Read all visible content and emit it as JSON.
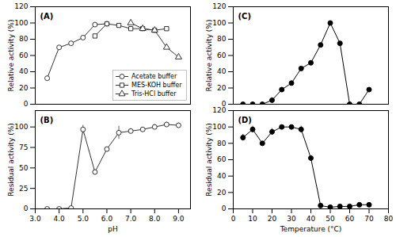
{
  "chart_data": [
    {
      "type": "line",
      "annotation": "(A)",
      "ylabel": "Relative activity (%)",
      "xlim": [
        3,
        9.5
      ],
      "ylim": [
        0,
        120
      ],
      "yticks": [
        0,
        20,
        40,
        60,
        80,
        100,
        120
      ],
      "tick_labels": "y",
      "legend": "lower right",
      "series": [
        {
          "name": "Acetate buffer",
          "color": "#333333",
          "marker": "open_circle",
          "x": [
            3.5,
            4.0,
            4.5,
            5.0,
            5.5,
            6.0
          ],
          "values": [
            32,
            70,
            75,
            82,
            98,
            99
          ]
        },
        {
          "name": "MES-KOH buffer",
          "color": "#333333",
          "marker": "open_square",
          "x": [
            5.5,
            6.0,
            6.5,
            7.0,
            7.5,
            8.0,
            8.5
          ],
          "values": [
            84,
            99,
            97,
            93,
            93,
            91,
            93
          ]
        },
        {
          "name": "Tris-HCl buffer",
          "color": "#333333",
          "marker": "open_triangle",
          "x": [
            7.0,
            7.5,
            8.0,
            8.5,
            9.0
          ],
          "values": [
            100,
            93,
            91,
            70,
            58
          ]
        }
      ]
    },
    {
      "type": "line",
      "annotation": "(C)",
      "ylabel": "Relative activity (%)",
      "xlim": [
        0,
        80
      ],
      "ylim": [
        0,
        120
      ],
      "yticks": [
        0,
        20,
        40,
        60,
        80,
        100,
        120
      ],
      "tick_labels": "y",
      "color": "#000000",
      "marker": "circle",
      "x": [
        5,
        10,
        15,
        20,
        25,
        30,
        35,
        40,
        45,
        50,
        55,
        60,
        65,
        70
      ],
      "values": [
        0,
        0,
        0,
        5,
        18,
        26,
        44,
        51,
        73,
        100,
        75,
        0,
        0,
        18
      ]
    },
    {
      "type": "line",
      "annotation": "(B)",
      "xlabel": "pH",
      "ylabel": "Residual activity (%)",
      "xlim": [
        3,
        9.5
      ],
      "xticks": [
        3,
        4,
        5,
        6,
        7,
        8,
        9
      ],
      "ylim": [
        0,
        120
      ],
      "yticks": [
        0,
        25,
        50,
        75,
        100
      ],
      "color": "#333333",
      "marker": "open_circle",
      "x": [
        3.5,
        4.0,
        4.5,
        5.0,
        5.5,
        6.0,
        6.5,
        7.0,
        7.5,
        8.0,
        8.5,
        9.0
      ],
      "values": [
        0,
        0,
        1,
        97,
        45,
        73,
        93,
        95,
        97,
        100,
        103,
        102
      ],
      "yerr": [
        0,
        0,
        0,
        5,
        0,
        0,
        8,
        3,
        0,
        3,
        3,
        3
      ]
    },
    {
      "type": "line",
      "annotation": "(D)",
      "xlabel": "Temperature (°C)",
      "ylabel": "Residual activity (%)",
      "xlim": [
        0,
        80
      ],
      "xticks": [
        0,
        10,
        20,
        30,
        40,
        50,
        60,
        70,
        80
      ],
      "ylim": [
        0,
        120
      ],
      "yticks": [
        0,
        20,
        40,
        60,
        80,
        100,
        120
      ],
      "color": "#000000",
      "marker": "circle",
      "x": [
        5,
        10,
        15,
        20,
        25,
        30,
        35,
        40,
        45,
        50,
        55,
        60,
        65,
        70
      ],
      "values": [
        87,
        97,
        80,
        94,
        100,
        100,
        97,
        62,
        4,
        2,
        3,
        3,
        5,
        5
      ],
      "yerr": [
        4,
        4,
        0,
        4,
        0,
        2,
        4,
        0,
        1,
        1,
        1,
        1,
        1,
        1
      ]
    }
  ]
}
